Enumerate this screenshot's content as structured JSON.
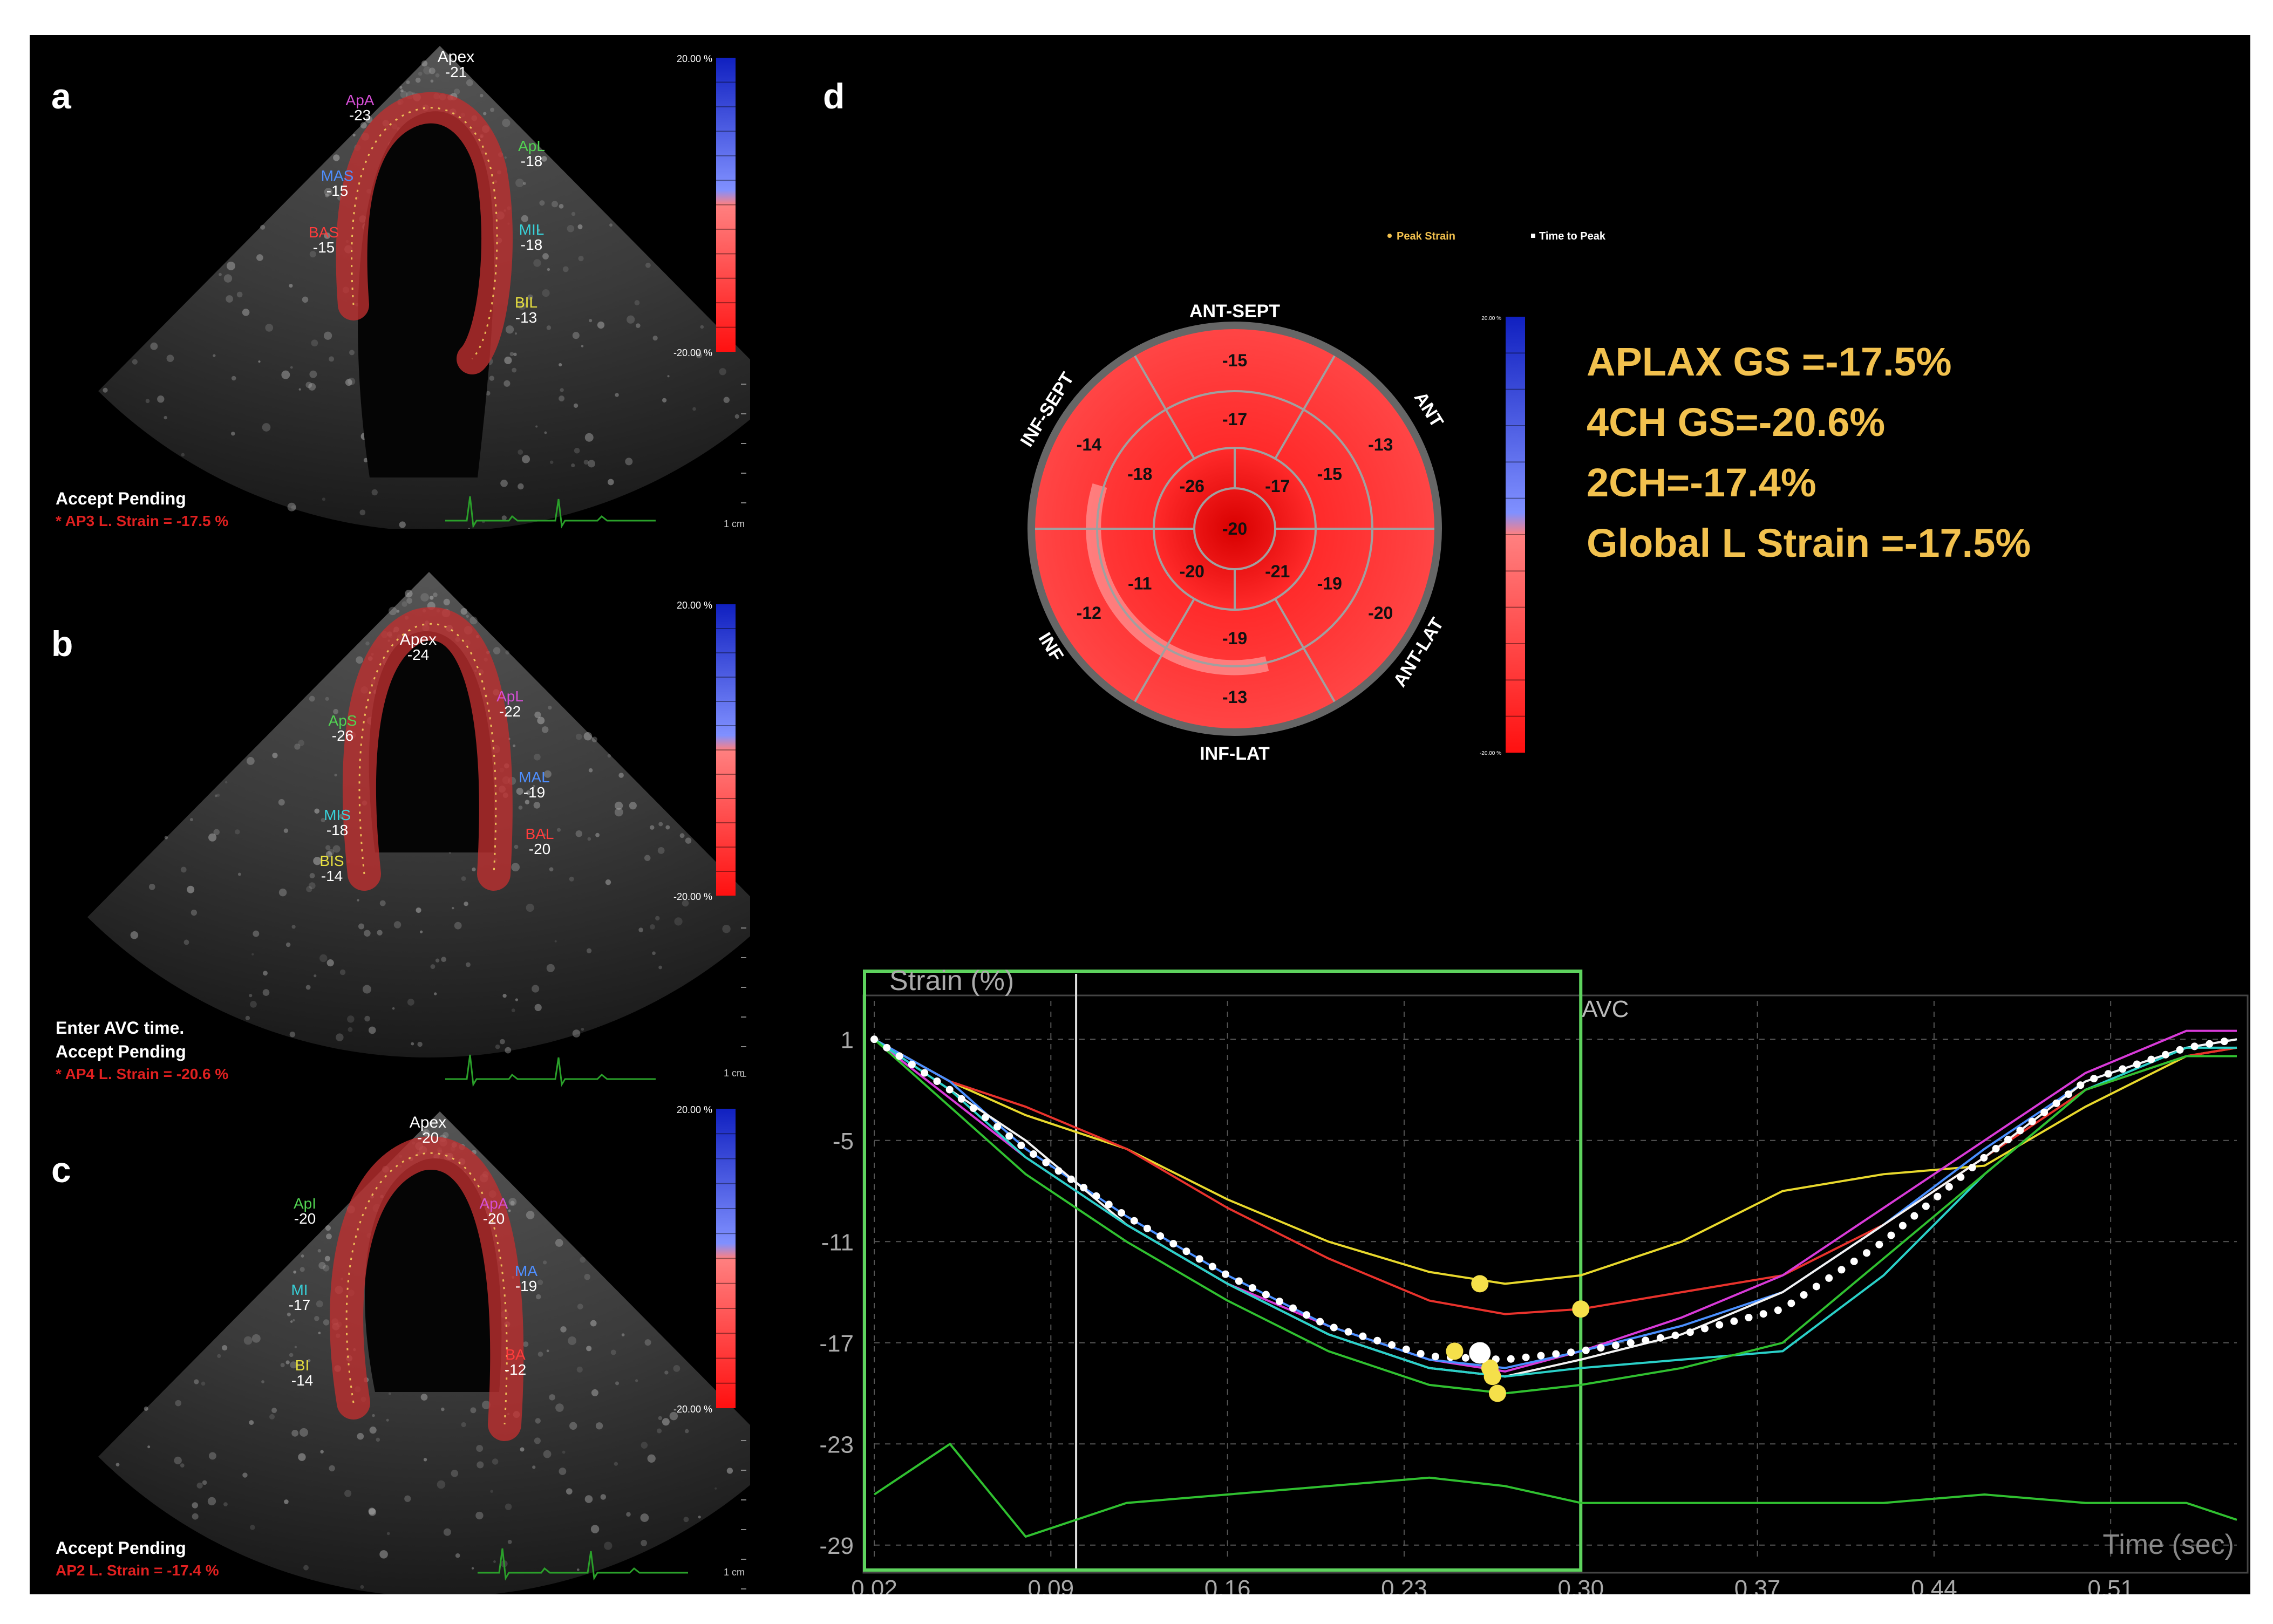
{
  "panel_labels": {
    "a": "a",
    "b": "b",
    "c": "c",
    "d": "d"
  },
  "echo_a": {
    "apex": "Apex",
    "apex_val": "-21",
    "seg": [
      {
        "n": "ApA",
        "v": "-23",
        "c": "#d64fd6"
      },
      {
        "n": "MAS",
        "v": "-15",
        "c": "#4f8fff"
      },
      {
        "n": "BAS",
        "v": "-15",
        "c": "#ff3c3c"
      },
      {
        "n": "ApL",
        "v": "-18",
        "c": "#52d452"
      },
      {
        "n": "MIL",
        "v": "-18",
        "c": "#38d0d8"
      },
      {
        "n": "BIL",
        "v": "-13",
        "c": "#e8e040"
      }
    ],
    "scale_top": "20.00 %",
    "scale_bottom": "-20.00 %",
    "cm": "1 cm",
    "status": "Accept Pending",
    "strain": "* AP3 L. Strain = -17.5 %"
  },
  "echo_b": {
    "apex": "Apex",
    "apex_val": "-24",
    "seg": [
      {
        "n": "ApS",
        "v": "-26",
        "c": "#52d452"
      },
      {
        "n": "MIS",
        "v": "-18",
        "c": "#38d0d8"
      },
      {
        "n": "BIS",
        "v": "-14",
        "c": "#e8e040"
      },
      {
        "n": "ApL",
        "v": "-22",
        "c": "#d64fd6"
      },
      {
        "n": "MAL",
        "v": "-19",
        "c": "#4f8fff"
      },
      {
        "n": "BAL",
        "v": "-20",
        "c": "#ff3c3c"
      }
    ],
    "scale_top": "20.00 %",
    "scale_bottom": "-20.00 %",
    "cm": "1 cm",
    "enter": "Enter AVC time.",
    "status": "Accept Pending",
    "strain": "* AP4 L. Strain = -20.6 %"
  },
  "echo_c": {
    "apex": "Apex",
    "apex_val": "-20",
    "seg": [
      {
        "n": "ApI",
        "v": "-20",
        "c": "#52d452"
      },
      {
        "n": "MI",
        "v": "-17",
        "c": "#38d0d8"
      },
      {
        "n": "BI",
        "v": "-14",
        "c": "#e8e040"
      },
      {
        "n": "ApA",
        "v": "-20",
        "c": "#d64fd6"
      },
      {
        "n": "MA",
        "v": "-19",
        "c": "#4f8fff"
      },
      {
        "n": "BA",
        "v": "-12",
        "c": "#ff3c3c"
      }
    ],
    "scale_top": "20.00 %",
    "scale_bottom": "-20.00 %",
    "cm": "1 cm",
    "status": "Accept Pending",
    "strain": "AP2 L. Strain = -17.4 %"
  },
  "bullseye": {
    "legend": [
      "Peak Strain",
      "Time to Peak"
    ],
    "walls": {
      "top": "ANT-SEPT",
      "bottom": "INF-LAT",
      "upper_left": "INF-SEPT",
      "upper_right": "ANT",
      "lower_left": "INF",
      "lower_right": "ANT-LAT"
    },
    "basal": [
      "-15",
      "-13",
      "-20",
      "-13",
      "-12",
      "-14"
    ],
    "mid": [
      "-17",
      "-15",
      "-19",
      "-19",
      "-11",
      "-18"
    ],
    "apical": [
      "-17",
      "-21",
      "-20",
      "-26"
    ],
    "apex": "-20",
    "scale_top": "20.00 %",
    "scale_bottom": "-20.00 %"
  },
  "global_strain": [
    "APLAX GS =-17.5%",
    "4CH GS=-20.6%",
    "2CH=-17.4%",
    "Global L Strain =-17.5%"
  ],
  "chart_data": {
    "type": "line",
    "ylabel": "Strain (%)",
    "xlabel": "Time (sec)",
    "annotation": "AVC",
    "avc_x": 0.3,
    "xlim": [
      0.02,
      0.56
    ],
    "ylim": [
      -30,
      2
    ],
    "x_ticks": [
      "0.02",
      "0.09",
      "0.16",
      "0.23",
      "0.30",
      "0.37",
      "0.44",
      "0.51"
    ],
    "y_ticks": [
      "1",
      "-5",
      "-11",
      "-17",
      "-23",
      "-29"
    ],
    "x": [
      0.02,
      0.05,
      0.08,
      0.12,
      0.16,
      0.2,
      0.24,
      0.27,
      0.3,
      0.34,
      0.38,
      0.42,
      0.46,
      0.5,
      0.54,
      0.56
    ],
    "series": [
      {
        "color": "#e8d82c",
        "values": [
          1,
          -1.5,
          -3.5,
          -5.5,
          -8.5,
          -11,
          -12.8,
          -13.5,
          -13,
          -11,
          -8,
          -7,
          -6.5,
          -3,
          0,
          0.5
        ]
      },
      {
        "color": "#e8322c",
        "values": [
          1,
          -1.5,
          -3,
          -5.5,
          -9,
          -12,
          -14.5,
          -15.3,
          -15,
          -14,
          -13,
          -10,
          -6,
          -2,
          0,
          0.5
        ]
      },
      {
        "color": "#d83ad8",
        "values": [
          1,
          -2.5,
          -6,
          -10,
          -13.5,
          -16,
          -18,
          -18.7,
          -17.5,
          -15.5,
          -13,
          -9,
          -5,
          -1,
          1.5,
          1.5
        ]
      },
      {
        "color": "#4a90ff",
        "values": [
          1,
          -1.5,
          -5.5,
          -9.5,
          -13,
          -16,
          -18,
          -18.5,
          -17.5,
          -16,
          -14,
          -10,
          -5.5,
          -1.5,
          0.5,
          1
        ]
      },
      {
        "color": "#f2f2f2",
        "values": [
          1,
          -2,
          -5,
          -10,
          -13.5,
          -16.5,
          -18.5,
          -19,
          -18,
          -16.5,
          -14,
          -10,
          -6,
          -1.5,
          0.5,
          1
        ]
      },
      {
        "color": "#2ad0c8",
        "values": [
          1,
          -2,
          -6,
          -10,
          -13.5,
          -16.5,
          -18.5,
          -19,
          -18.5,
          -18,
          -17.5,
          -13,
          -7,
          -2,
          0.5,
          0.5
        ]
      },
      {
        "color": "#30c030",
        "values": [
          1,
          -3,
          -7,
          -11,
          -14.5,
          -17.5,
          -19.5,
          -20,
          -19.5,
          -18.5,
          -17,
          -12,
          -7,
          -2,
          0,
          0
        ]
      },
      {
        "color": "#30c030",
        "values": [
          -26,
          -23,
          -28.5,
          -26.5,
          -26,
          -25.5,
          -25,
          -25.5,
          -26.5,
          -26.5,
          -26.5,
          -26.5,
          -26,
          -26.5,
          -26.5,
          -27.5
        ]
      }
    ],
    "average": {
      "color": "#ffffff",
      "values": [
        1,
        -2,
        -5.5,
        -9.5,
        -13,
        -16,
        -17.8,
        -18,
        -17.5,
        -16.5,
        -15,
        -11,
        -6,
        -1.5,
        0.5,
        1
      ]
    },
    "peaks": [
      {
        "x": 0.26,
        "y": -13.5
      },
      {
        "x": 0.3,
        "y": -15
      },
      {
        "x": 0.25,
        "y": -17.5
      },
      {
        "x": 0.265,
        "y": -19
      },
      {
        "x": 0.267,
        "y": -20
      },
      {
        "x": 0.264,
        "y": -18.5
      }
    ],
    "time_to_peak": {
      "x": 0.26,
      "y": -17.6
    }
  }
}
